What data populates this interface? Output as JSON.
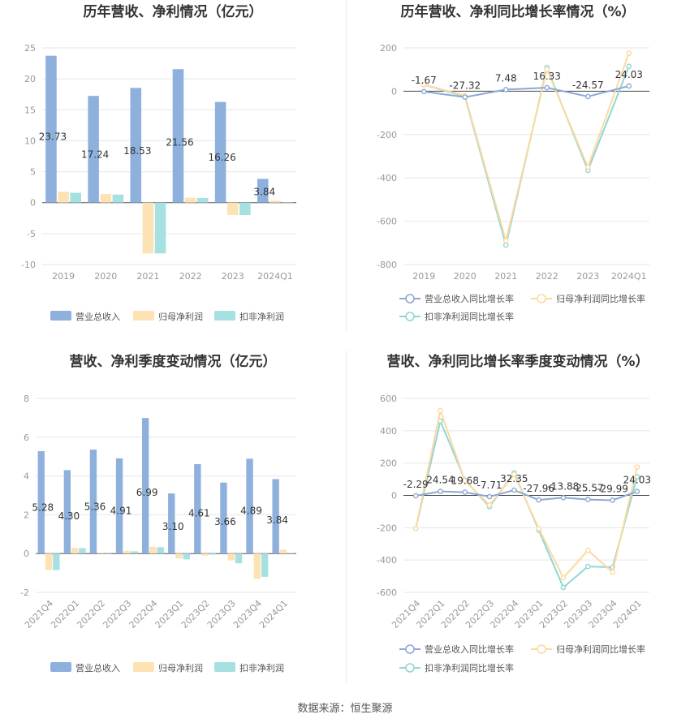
{
  "footer": {
    "source": "数据来源：恒生聚源"
  },
  "colors": {
    "revenue": "#8eb0dc",
    "net_profit": "#fde2b3",
    "deducted_profit": "#a6e0e0",
    "rev_line": "#8aa9d6",
    "np_line": "#fdd9a0",
    "dp_line": "#8fd6d6",
    "grid": "#e6e6e6",
    "axis_text": "#999999",
    "title": "#333333"
  },
  "chart_data": [
    {
      "id": "annual-bar",
      "type": "bar",
      "title": "历年营收、净利情况（亿元）",
      "categories": [
        "2019",
        "2020",
        "2021",
        "2022",
        "2023",
        "2024Q1"
      ],
      "series": [
        {
          "name": "营业总收入",
          "values": [
            23.73,
            17.24,
            18.53,
            21.56,
            16.26,
            3.84
          ],
          "labels": [
            "23.73",
            "17.24",
            "18.53",
            "21.56",
            "16.26",
            "3.84"
          ]
        },
        {
          "name": "归母净利润",
          "values": [
            1.75,
            1.4,
            -8.2,
            0.8,
            -2.0,
            0.3
          ]
        },
        {
          "name": "扣非净利润",
          "values": [
            1.6,
            1.3,
            -8.2,
            0.75,
            -2.0,
            0.05
          ]
        }
      ],
      "yticks": [
        "25",
        "20",
        "15",
        "10",
        "5",
        "0",
        "-5",
        "-10"
      ],
      "ylim": [
        -10,
        25
      ],
      "xlabel_rotate": false
    },
    {
      "id": "annual-line",
      "type": "line",
      "title": "历年营收、净利同比增长率情况（%）",
      "categories": [
        "2019",
        "2020",
        "2021",
        "2022",
        "2023",
        "2024Q1"
      ],
      "series": [
        {
          "name": "营业总收入同比增长率",
          "values": [
            -1.67,
            -27.32,
            7.48,
            16.33,
            -24.57,
            24.03
          ],
          "labels": [
            "-1.67",
            "-27.32",
            "7.48",
            "16.33",
            "-24.57",
            "24.03"
          ]
        },
        {
          "name": "归母净利润同比增长率",
          "values": [
            30,
            -20,
            -690,
            100,
            -350,
            175
          ]
        },
        {
          "name": "扣非净利润同比增长率",
          "values": [
            30,
            -25,
            -710,
            110,
            -365,
            115
          ]
        }
      ],
      "yticks": [
        "200",
        "0",
        "-200",
        "-400",
        "-600",
        "-800"
      ],
      "ylim": [
        -800,
        200
      ],
      "xlabel_rotate": false
    },
    {
      "id": "quarterly-bar",
      "type": "bar",
      "title": "营收、净利季度变动情况（亿元）",
      "categories": [
        "2021Q4",
        "2022Q1",
        "2022Q2",
        "2022Q3",
        "2022Q4",
        "2023Q1",
        "2023Q2",
        "2023Q3",
        "2023Q4",
        "2024Q1"
      ],
      "series": [
        {
          "name": "营业总收入",
          "values": [
            5.28,
            4.3,
            5.36,
            4.91,
            6.99,
            3.1,
            4.61,
            3.66,
            4.89,
            3.84
          ],
          "labels": [
            "5.28",
            "4.30",
            "5.36",
            "4.91",
            "6.99",
            "3.10",
            "4.61",
            "3.66",
            "4.89",
            "3.84"
          ]
        },
        {
          "name": "归母净利润",
          "values": [
            -0.85,
            0.3,
            0.02,
            0.15,
            0.35,
            -0.25,
            -0.1,
            -0.35,
            -1.3,
            0.2
          ]
        },
        {
          "name": "扣非净利润",
          "values": [
            -0.85,
            0.28,
            0.0,
            0.12,
            0.33,
            -0.3,
            -0.05,
            -0.5,
            -1.2,
            0.02
          ]
        }
      ],
      "yticks": [
        "8",
        "6",
        "4",
        "2",
        "0",
        "-2"
      ],
      "ylim": [
        -2,
        8
      ],
      "xlabel_rotate": true
    },
    {
      "id": "quarterly-line",
      "type": "line",
      "title": "营收、净利同比增长率季度变动情况（%）",
      "categories": [
        "2021Q4",
        "2022Q1",
        "2022Q2",
        "2022Q3",
        "2022Q4",
        "2023Q1",
        "2023Q2",
        "2023Q3",
        "2023Q4",
        "2024Q1"
      ],
      "series": [
        {
          "name": "营业总收入同比增长率",
          "values": [
            -2.29,
            24.54,
            19.68,
            -7.71,
            32.35,
            -27.96,
            -13.88,
            -25.57,
            -29.99,
            24.03
          ],
          "labels": [
            "-2.29",
            "24.54",
            "19.68",
            "-7.71",
            "32.35",
            "-27.96",
            "-13.88",
            "-25.57",
            "-29.99",
            "24.03"
          ]
        },
        {
          "name": "归母净利润同比增长率",
          "values": [
            -205,
            525,
            90,
            -60,
            130,
            -205,
            -510,
            -340,
            -475,
            175
          ]
        },
        {
          "name": "扣非净利润同比增长率",
          "values": [
            -205,
            460,
            95,
            -70,
            140,
            -215,
            -570,
            -440,
            -445,
            115
          ]
        }
      ],
      "yticks": [
        "600",
        "400",
        "200",
        "0",
        "-200",
        "-400",
        "-600"
      ],
      "ylim": [
        -600,
        600
      ],
      "xlabel_rotate": true
    }
  ]
}
